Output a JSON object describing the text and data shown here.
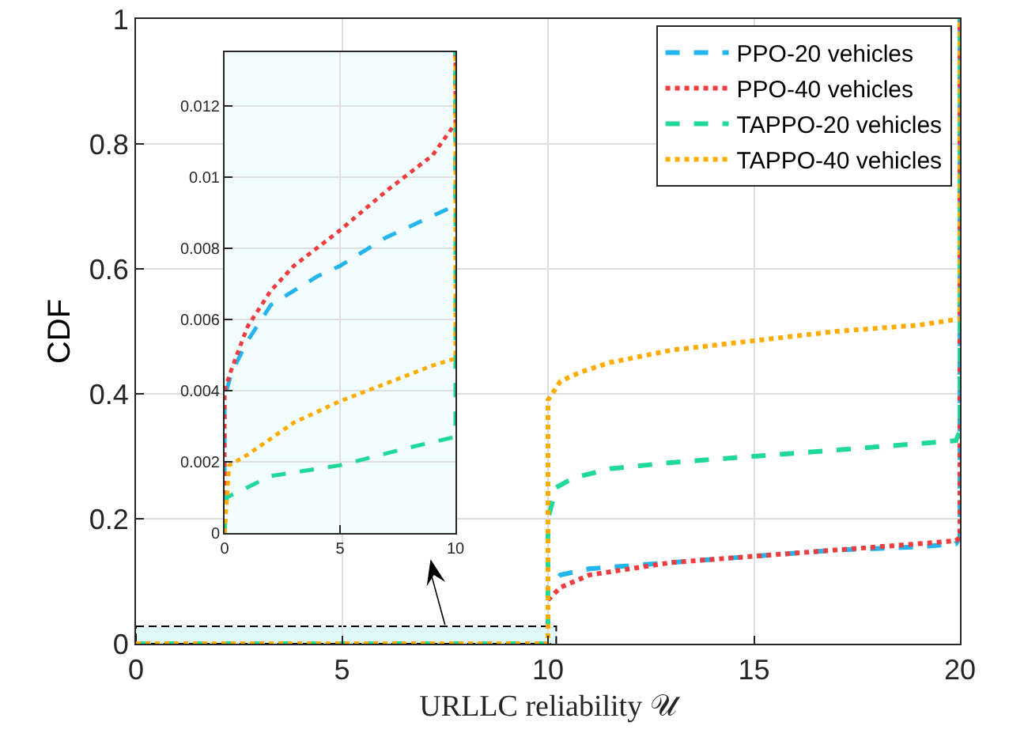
{
  "chart_data": [
    {
      "type": "line",
      "xlabel": "URLLC reliability 𝒰",
      "ylabel": "CDF",
      "xlim": [
        0,
        20
      ],
      "ylim": [
        0,
        1
      ],
      "xticks": [
        0,
        5,
        10,
        15,
        20
      ],
      "yticks": [
        0,
        0.2,
        0.4,
        0.6,
        0.8,
        1
      ],
      "grid": true,
      "legend": "top right",
      "series": [
        {
          "name": "PPO-20 vehicles",
          "color": "#22b5ee",
          "line_style": "dashed",
          "x": [
            0,
            10,
            10,
            10.3,
            11,
            12,
            13,
            15,
            17,
            19,
            19.9,
            20,
            20
          ],
          "values": [
            0,
            0,
            0.09,
            0.11,
            0.12,
            0.125,
            0.13,
            0.14,
            0.15,
            0.155,
            0.16,
            0.17,
            1
          ]
        },
        {
          "name": "PPO-40 vehicles",
          "color": "#f03c3c",
          "line_style": "dotted",
          "x": [
            0,
            10,
            10,
            10.3,
            11,
            12,
            13,
            15,
            17,
            19,
            19.9,
            20,
            20
          ],
          "values": [
            0,
            0,
            0.07,
            0.09,
            0.11,
            0.12,
            0.13,
            0.14,
            0.15,
            0.16,
            0.165,
            0.17,
            1
          ]
        },
        {
          "name": "TAPPO-20 vehicles",
          "color": "#20d89a",
          "line_style": "dashed",
          "x": [
            0,
            10,
            10,
            10.2,
            10.6,
            11.5,
            13,
            15,
            17,
            19.9,
            20,
            20
          ],
          "values": [
            0,
            0,
            0.2,
            0.25,
            0.265,
            0.28,
            0.29,
            0.3,
            0.31,
            0.325,
            0.34,
            1
          ]
        },
        {
          "name": "TAPPO-40 vehicles",
          "color": "#ffab00",
          "line_style": "dotted",
          "x": [
            0,
            10,
            10,
            10.3,
            10.8,
            11.5,
            13,
            15,
            17,
            19,
            20,
            20
          ],
          "values": [
            0,
            0,
            0.39,
            0.42,
            0.435,
            0.45,
            0.47,
            0.485,
            0.5,
            0.51,
            0.52,
            1
          ]
        }
      ]
    },
    {
      "type": "line",
      "xlim": [
        0,
        10
      ],
      "ylim": [
        0,
        0.0135
      ],
      "xticks": [
        0,
        5,
        10
      ],
      "yticks": [
        0,
        0.002,
        0.004,
        0.006,
        0.008,
        0.01,
        0.012
      ],
      "grid": true,
      "series": [
        {
          "color": "#22b5ee",
          "line_style": "dashed",
          "x": [
            0,
            0,
            0.3,
            1,
            2,
            3,
            4,
            5,
            7,
            9,
            10,
            10
          ],
          "values": [
            0,
            0.0038,
            0.0045,
            0.0054,
            0.0064,
            0.0068,
            0.0072,
            0.0075,
            0.0083,
            0.0089,
            0.0092,
            0.0135
          ]
        },
        {
          "color": "#f03c3c",
          "line_style": "dotted",
          "x": [
            0,
            0,
            0.3,
            1,
            2,
            3,
            5,
            7,
            9,
            10,
            10
          ],
          "values": [
            0,
            0.004,
            0.0046,
            0.0058,
            0.0068,
            0.0075,
            0.0085,
            0.0096,
            0.0106,
            0.0115,
            0.0135
          ]
        },
        {
          "color": "#20d89a",
          "line_style": "dashed",
          "x": [
            0,
            0.1,
            2,
            5,
            8,
            10,
            10,
            10
          ],
          "values": [
            0,
            0.001,
            0.0016,
            0.0019,
            0.0024,
            0.0027,
            0.0035,
            0.0135
          ]
        },
        {
          "color": "#ffab00",
          "line_style": "dotted",
          "x": [
            0,
            0.2,
            1,
            3,
            5,
            7,
            9,
            10,
            10
          ],
          "values": [
            0,
            0.0019,
            0.0022,
            0.0031,
            0.0037,
            0.0042,
            0.0047,
            0.0049,
            0.0135
          ]
        }
      ]
    }
  ]
}
